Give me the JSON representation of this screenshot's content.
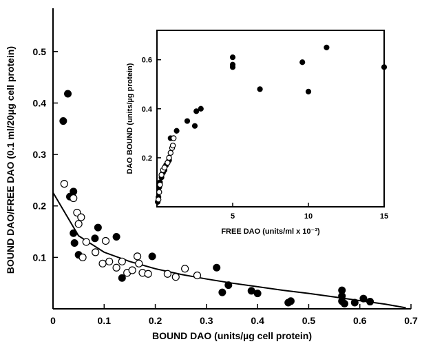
{
  "chart_data": [
    {
      "type": "scatter",
      "xlabel": "BOUND DAO (units/µg cell protein)",
      "ylabel": "BOUND DAO/FREE DAO (0.1 ml/20µg cell protein)",
      "xlim": [
        0,
        0.7
      ],
      "ylim": [
        0,
        0.56
      ],
      "x_ticks": [
        "0",
        "0.1",
        "0.2",
        "0.3",
        "0.4",
        "0.5",
        "0.6",
        "0.7"
      ],
      "y_ticks": [
        "0.1",
        "0.2",
        "0.3",
        "0.4",
        "0.5"
      ],
      "grid": false,
      "series": [
        {
          "marker": "filled-circle",
          "points": [
            [
              0.02,
              0.365
            ],
            [
              0.029,
              0.418
            ],
            [
              0.033,
              0.218
            ],
            [
              0.04,
              0.228
            ],
            [
              0.04,
              0.147
            ],
            [
              0.042,
              0.128
            ],
            [
              0.05,
              0.105
            ],
            [
              0.082,
              0.137
            ],
            [
              0.088,
              0.158
            ],
            [
              0.124,
              0.14
            ],
            [
              0.135,
              0.06
            ],
            [
              0.194,
              0.102
            ],
            [
              0.32,
              0.08
            ],
            [
              0.331,
              0.032
            ],
            [
              0.343,
              0.046
            ],
            [
              0.388,
              0.035
            ],
            [
              0.4,
              0.03
            ],
            [
              0.46,
              0.012
            ],
            [
              0.465,
              0.015
            ],
            [
              0.565,
              0.036
            ],
            [
              0.565,
              0.025
            ],
            [
              0.565,
              0.015
            ],
            [
              0.57,
              0.01
            ],
            [
              0.59,
              0.012
            ],
            [
              0.607,
              0.02
            ],
            [
              0.62,
              0.014
            ]
          ]
        },
        {
          "marker": "open-circle",
          "points": [
            [
              0.022,
              0.243
            ],
            [
              0.04,
              0.215
            ],
            [
              0.047,
              0.187
            ],
            [
              0.05,
              0.165
            ],
            [
              0.055,
              0.178
            ],
            [
              0.058,
              0.1
            ],
            [
              0.065,
              0.13
            ],
            [
              0.083,
              0.11
            ],
            [
              0.097,
              0.088
            ],
            [
              0.103,
              0.132
            ],
            [
              0.11,
              0.092
            ],
            [
              0.124,
              0.08
            ],
            [
              0.135,
              0.092
            ],
            [
              0.145,
              0.07
            ],
            [
              0.155,
              0.075
            ],
            [
              0.165,
              0.102
            ],
            [
              0.168,
              0.088
            ],
            [
              0.175,
              0.07
            ],
            [
              0.186,
              0.068
            ],
            [
              0.224,
              0.068
            ],
            [
              0.24,
              0.062
            ],
            [
              0.258,
              0.078
            ],
            [
              0.282,
              0.065
            ]
          ]
        }
      ],
      "curve": [
        [
          0.0,
          0.226
        ],
        [
          0.05,
          0.142
        ],
        [
          0.1,
          0.11
        ],
        [
          0.15,
          0.092
        ],
        [
          0.2,
          0.078
        ],
        [
          0.25,
          0.067
        ],
        [
          0.3,
          0.058
        ],
        [
          0.35,
          0.05
        ],
        [
          0.4,
          0.043
        ],
        [
          0.45,
          0.036
        ],
        [
          0.5,
          0.03
        ],
        [
          0.55,
          0.023
        ],
        [
          0.6,
          0.016
        ],
        [
          0.65,
          0.009
        ],
        [
          0.69,
          0.002
        ]
      ]
    },
    {
      "type": "scatter",
      "xlabel": "FREE DAO (units/ml x 10⁻³)",
      "ylabel": "DAO BOUND (units/µg protein)",
      "xlim": [
        0,
        15
      ],
      "ylim": [
        0,
        0.72
      ],
      "x_ticks": [
        "5",
        "10",
        "15"
      ],
      "y_ticks": [
        "0.2",
        "0.4",
        "0.6"
      ],
      "grid": false,
      "series": [
        {
          "marker": "filled-circle",
          "points": [
            [
              0.05,
              0.02
            ],
            [
              0.1,
              0.04
            ],
            [
              0.15,
              0.08
            ],
            [
              0.2,
              0.1
            ],
            [
              0.3,
              0.12
            ],
            [
              0.4,
              0.14
            ],
            [
              0.5,
              0.15
            ],
            [
              0.6,
              0.17
            ],
            [
              0.7,
              0.18
            ],
            [
              0.8,
              0.19
            ],
            [
              0.9,
              0.28
            ],
            [
              1.3,
              0.31
            ],
            [
              2.0,
              0.35
            ],
            [
              2.5,
              0.33
            ],
            [
              2.6,
              0.39
            ],
            [
              2.9,
              0.4
            ],
            [
              5.0,
              0.61
            ],
            [
              5.0,
              0.58
            ],
            [
              5.0,
              0.57
            ],
            [
              6.8,
              0.48
            ],
            [
              9.6,
              0.59
            ],
            [
              10.0,
              0.47
            ],
            [
              11.2,
              0.65
            ],
            [
              15.0,
              0.57
            ]
          ]
        },
        {
          "marker": "open-circle",
          "points": [
            [
              0.1,
              0.03
            ],
            [
              0.15,
              0.06
            ],
            [
              0.2,
              0.09
            ],
            [
              0.3,
              0.13
            ],
            [
              0.4,
              0.15
            ],
            [
              0.5,
              0.16
            ],
            [
              0.7,
              0.18
            ],
            [
              0.8,
              0.2
            ],
            [
              0.9,
              0.22
            ],
            [
              1.0,
              0.24
            ],
            [
              1.05,
              0.25
            ],
            [
              1.1,
              0.28
            ]
          ]
        }
      ]
    }
  ]
}
